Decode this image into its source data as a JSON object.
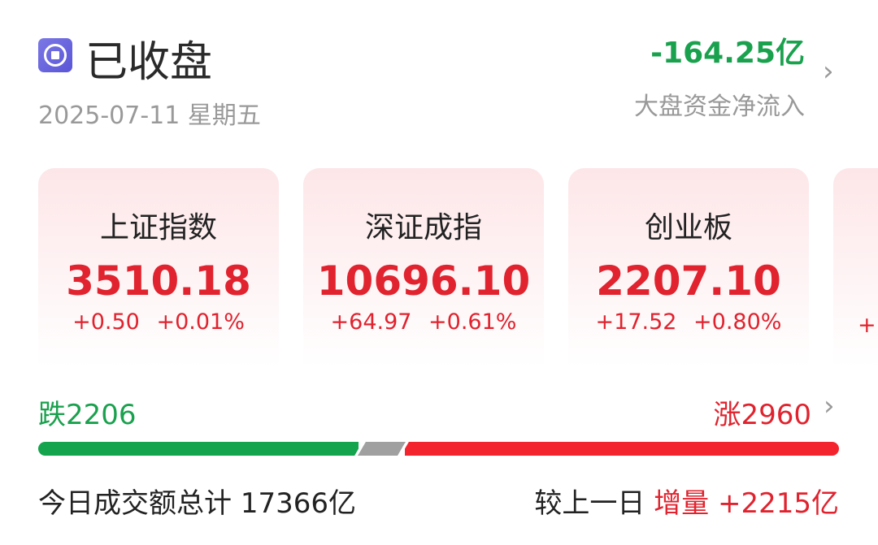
{
  "header": {
    "status": "已收盘",
    "date": "2025-07-11 星期五",
    "net_flow": "-164.25亿",
    "net_flow_label": "大盘资金净流入"
  },
  "indices": [
    {
      "name": "上证指数",
      "value": "3510.18",
      "change": "+0.50",
      "pct": "+0.01%"
    },
    {
      "name": "深证成指",
      "value": "10696.10",
      "change": "+64.97",
      "pct": "+0.61%"
    },
    {
      "name": "创业板",
      "value": "2207.10",
      "change": "+17.52",
      "pct": "+0.80%"
    },
    {
      "name": "",
      "value": "",
      "change": "+",
      "pct": ""
    }
  ],
  "breadth": {
    "fall_label": "跌",
    "fall": "2206",
    "rise_label": "涨",
    "rise": "2960",
    "fractions": {
      "fall": 0.4,
      "flat": 0.05,
      "rise": 0.55
    }
  },
  "turnover": {
    "label": "今日成交额总计",
    "value": "17366亿",
    "compare_label": "较上一日",
    "delta_label": "增量",
    "delta": "+2215亿"
  },
  "colors": {
    "up": "#e0232e",
    "down": "#1aa14e",
    "flat": "#a0a0a0"
  }
}
